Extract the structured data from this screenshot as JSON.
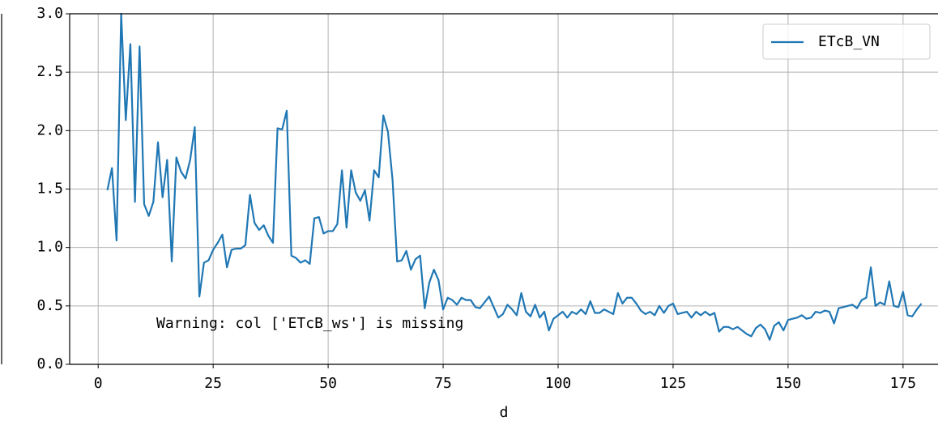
{
  "chart_data": {
    "type": "line",
    "xlabel": "d",
    "annotation": "Warning: col ['ETcB_ws'] is missing",
    "x": [
      2,
      3,
      4,
      5,
      6,
      7,
      8,
      9,
      10,
      11,
      12,
      13,
      14,
      15,
      16,
      17,
      18,
      19,
      20,
      21,
      22,
      23,
      24,
      25,
      26,
      27,
      28,
      29,
      30,
      31,
      32,
      33,
      34,
      35,
      36,
      37,
      38,
      39,
      40,
      41,
      42,
      43,
      44,
      45,
      46,
      47,
      48,
      49,
      50,
      51,
      52,
      53,
      54,
      55,
      56,
      57,
      58,
      59,
      60,
      61,
      62,
      63,
      64,
      65,
      66,
      67,
      68,
      69,
      70,
      71,
      72,
      73,
      74,
      75,
      76,
      77,
      78,
      79,
      80,
      81,
      82,
      83,
      84,
      85,
      86,
      87,
      88,
      89,
      90,
      91,
      92,
      93,
      94,
      95,
      96,
      97,
      98,
      99,
      100,
      101,
      102,
      103,
      104,
      105,
      106,
      107,
      108,
      109,
      110,
      111,
      112,
      113,
      114,
      115,
      116,
      117,
      118,
      119,
      120,
      121,
      122,
      123,
      124,
      125,
      126,
      127,
      128,
      129,
      130,
      131,
      132,
      133,
      134,
      135,
      136,
      137,
      138,
      139,
      140,
      141,
      142,
      143,
      144,
      145,
      146,
      147,
      148,
      149,
      150,
      151,
      152,
      153,
      154,
      155,
      156,
      157,
      158,
      159,
      160,
      161,
      162,
      163,
      164,
      165,
      166,
      167,
      168,
      169,
      170,
      171,
      172,
      173,
      174,
      175,
      176,
      177,
      178,
      179
    ],
    "series": [
      {
        "name": "ETcB_VN",
        "color": "#1f77b4",
        "values": [
          1.49,
          1.68,
          1.06,
          3.0,
          2.09,
          2.74,
          1.39,
          2.72,
          1.37,
          1.27,
          1.39,
          1.9,
          1.43,
          1.75,
          0.88,
          1.77,
          1.65,
          1.59,
          1.75,
          2.03,
          0.58,
          0.87,
          0.89,
          0.98,
          1.04,
          1.11,
          0.83,
          0.98,
          0.99,
          0.99,
          1.02,
          1.45,
          1.21,
          1.15,
          1.19,
          1.1,
          1.04,
          2.02,
          2.01,
          2.17,
          0.93,
          0.91,
          0.87,
          0.89,
          0.86,
          1.25,
          1.26,
          1.12,
          1.14,
          1.14,
          1.2,
          1.66,
          1.17,
          1.66,
          1.47,
          1.4,
          1.49,
          1.23,
          1.66,
          1.6,
          2.13,
          1.99,
          1.58,
          0.88,
          0.89,
          0.97,
          0.81,
          0.9,
          0.93,
          0.48,
          0.7,
          0.81,
          0.72,
          0.47,
          0.57,
          0.55,
          0.51,
          0.57,
          0.55,
          0.55,
          0.49,
          0.48,
          0.53,
          0.58,
          0.49,
          0.4,
          0.43,
          0.51,
          0.47,
          0.42,
          0.61,
          0.45,
          0.41,
          0.51,
          0.4,
          0.45,
          0.29,
          0.39,
          0.42,
          0.45,
          0.4,
          0.45,
          0.43,
          0.47,
          0.43,
          0.54,
          0.44,
          0.44,
          0.47,
          0.45,
          0.43,
          0.61,
          0.52,
          0.57,
          0.57,
          0.52,
          0.46,
          0.43,
          0.45,
          0.42,
          0.5,
          0.44,
          0.5,
          0.52,
          0.43,
          0.44,
          0.45,
          0.4,
          0.45,
          0.42,
          0.45,
          0.42,
          0.44,
          0.28,
          0.32,
          0.32,
          0.3,
          0.32,
          0.29,
          0.26,
          0.24,
          0.31,
          0.34,
          0.3,
          0.21,
          0.33,
          0.36,
          0.29,
          0.38,
          0.39,
          0.4,
          0.42,
          0.39,
          0.4,
          0.45,
          0.44,
          0.46,
          0.45,
          0.35,
          0.48,
          0.49,
          0.5,
          0.51,
          0.48,
          0.55,
          0.57,
          0.83,
          0.5,
          0.53,
          0.51,
          0.71,
          0.5,
          0.49,
          0.62,
          0.42,
          0.41,
          0.47,
          0.52
        ]
      }
    ],
    "xlim": [
      -6.2,
      182.6
    ],
    "ylim": [
      0,
      3
    ],
    "xticks": [
      0,
      25,
      50,
      75,
      100,
      125,
      150,
      175
    ],
    "yticks": [
      {
        "value": 0,
        "label": "0.0"
      },
      0.5,
      {
        "value": 1,
        "label": "1.0"
      },
      1.5,
      {
        "value": 2,
        "label": "2.0"
      },
      2.5,
      {
        "value": 3,
        "label": "3.0"
      }
    ],
    "grid": true,
    "legend": "upper right"
  }
}
